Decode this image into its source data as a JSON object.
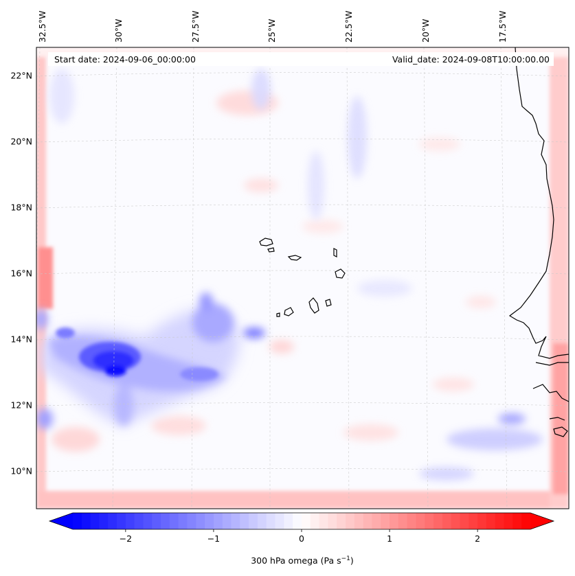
{
  "map": {
    "header": {
      "start_date": "Start date: 2024-09-06_00:00:00",
      "valid_date": "Valid_date: 2024-09-08T10:00:00.00"
    },
    "lat_ticks": [
      {
        "value": 22,
        "label": "22°N"
      },
      {
        "value": 20,
        "label": "20°N"
      },
      {
        "value": 18,
        "label": "18°N"
      },
      {
        "value": 16,
        "label": "16°N"
      },
      {
        "value": 14,
        "label": "14°N"
      },
      {
        "value": 12,
        "label": "12°N"
      },
      {
        "value": 10,
        "label": "10°N"
      }
    ],
    "lon_ticks": [
      {
        "value": -32.5,
        "label": "32.5°W"
      },
      {
        "value": -30,
        "label": "30°W"
      },
      {
        "value": -27.5,
        "label": "27.5°W"
      },
      {
        "value": -25,
        "label": "25°W"
      },
      {
        "value": -22.5,
        "label": "22.5°W"
      },
      {
        "value": -20,
        "label": "20°W"
      },
      {
        "value": -17.5,
        "label": "17.5°W"
      }
    ],
    "colorbar": {
      "ticks": [
        {
          "value": -2,
          "label": "−2"
        },
        {
          "value": -1,
          "label": "−1"
        },
        {
          "value": 0,
          "label": "0"
        },
        {
          "value": 1,
          "label": "1"
        },
        {
          "value": 2,
          "label": "2"
        }
      ],
      "range": [
        -2.6,
        2.6
      ],
      "label": "300 hPa omega (Pa s",
      "label_sup": "−1",
      "label_end": ")",
      "low_color": "#0000ff",
      "mid_color": "#ffffff",
      "high_color": "#ff0000"
    }
  }
}
